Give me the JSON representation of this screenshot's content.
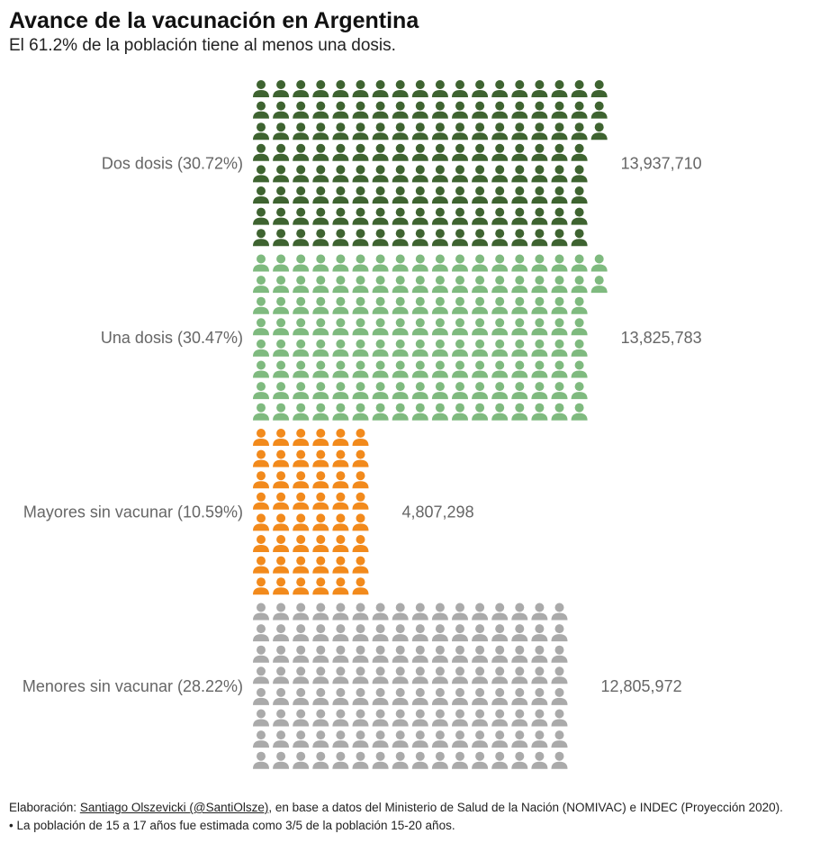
{
  "header": {
    "title": "Avance de la vacunación en Argentina",
    "subtitle": "El 61.2% de la población tiene al menos una dosis."
  },
  "chart_data": {
    "type": "waffle",
    "title": "Avance de la vacunación en Argentina",
    "subtitle": "El 61.2% de la población tiene al menos una dosis.",
    "series": [
      {
        "name": "Dos dosis",
        "label": "Dos dosis (30.72%)",
        "percent": 30.72,
        "value": 13937710,
        "value_label": "13,937,710",
        "color": "#3e6330",
        "icons": 139
      },
      {
        "name": "Una dosis",
        "label": "Una dosis (30.47%)",
        "percent": 30.47,
        "value": 13825783,
        "value_label": "13,825,783",
        "color": "#7fba7f",
        "icons": 138
      },
      {
        "name": "Mayores sin vacunar",
        "label": "Mayores sin vacunar (10.59%)",
        "percent": 10.59,
        "value": 4807298,
        "value_label": "4,807,298",
        "color": "#f28a1c",
        "icons": 48
      },
      {
        "name": "Menores sin vacunar",
        "label": "Menores sin vacunar (28.22%)",
        "percent": 28.22,
        "value": 12805972,
        "value_label": "12,805,972",
        "color": "#aaaaaa",
        "icons": 128
      }
    ]
  },
  "footer": {
    "prefix": "Elaboración: ",
    "author": "Santiago Olszevicki (@SantiOlsze)",
    "suffix": ", en base a datos del Ministerio de Salud de la Nación (NOMIVAC) e INDEC (Proyección 2020).",
    "note": "• La población de 15 a 17 años fue estimada como 3/5 de la población 15-20 años."
  }
}
